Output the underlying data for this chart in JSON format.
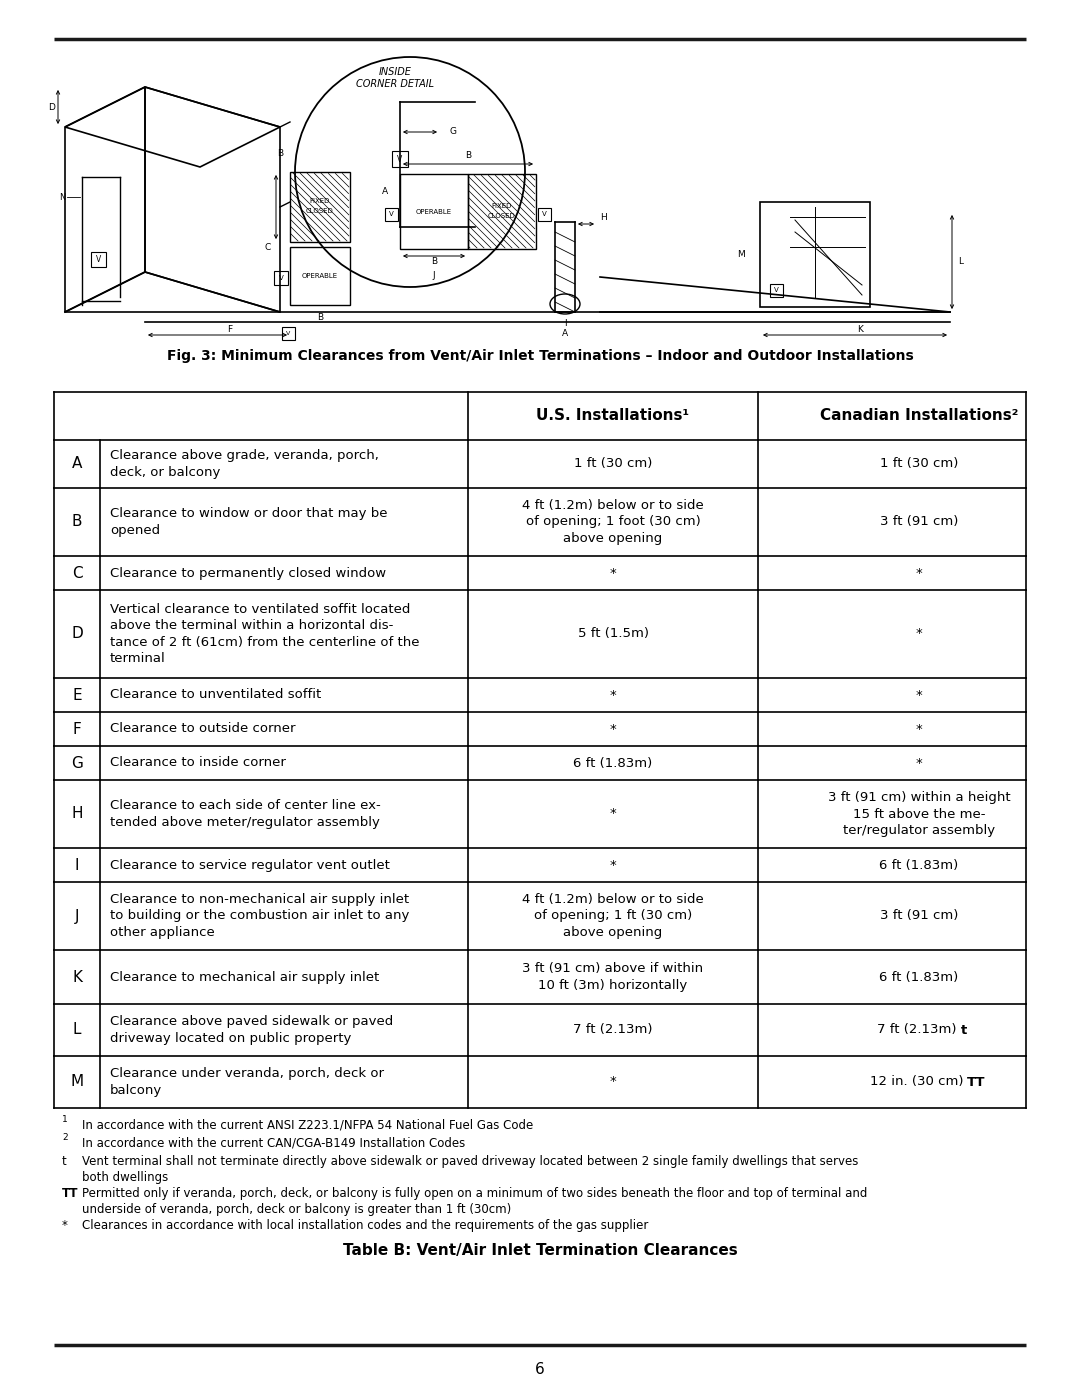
{
  "fig_caption": "Fig. 3: Minimum Clearances from Vent/Air Inlet Terminations – Indoor and Outdoor Installations",
  "table_title": "Table B: Vent/Air Inlet Termination Clearances",
  "rows": [
    {
      "letter": "A",
      "description": "Clearance above grade, veranda, porch,\ndeck, or balcony",
      "us": "1 ft (30 cm)",
      "canada": "1 ft (30 cm)",
      "canada_bold": ""
    },
    {
      "letter": "B",
      "description": "Clearance to window or door that may be\nopened",
      "us": "4 ft (1.2m) below or to side\nof opening; 1 foot (30 cm)\nabove opening",
      "canada": "3 ft (91 cm)",
      "canada_bold": ""
    },
    {
      "letter": "C",
      "description": "Clearance to permanently closed window",
      "us": "*",
      "canada": "*",
      "canada_bold": ""
    },
    {
      "letter": "D",
      "description": "Vertical clearance to ventilated soffit located\nabove the terminal within a horizontal dis-\ntance of 2 ft (61cm) from the centerline of the\nterminal",
      "us": "5 ft (1.5m)",
      "canada": "*",
      "canada_bold": ""
    },
    {
      "letter": "E",
      "description": "Clearance to unventilated soffit",
      "us": "*",
      "canada": "*",
      "canada_bold": ""
    },
    {
      "letter": "F",
      "description": "Clearance to outside corner",
      "us": "*",
      "canada": "*",
      "canada_bold": ""
    },
    {
      "letter": "G",
      "description": "Clearance to inside corner",
      "us": "6 ft (1.83m)",
      "canada": "*",
      "canada_bold": ""
    },
    {
      "letter": "H",
      "description": "Clearance to each side of center line ex-\ntended above meter/regulator assembly",
      "us": "*",
      "canada": "3 ft (91 cm) within a height\n15 ft above the me-\nter/regulator assembly",
      "canada_bold": ""
    },
    {
      "letter": "I",
      "description": "Clearance to service regulator vent outlet",
      "us": "*",
      "canada": "6 ft (1.83m)",
      "canada_bold": ""
    },
    {
      "letter": "J",
      "description": "Clearance to non-mechanical air supply inlet\nto building or the combustion air inlet to any\nother appliance",
      "us": "4 ft (1.2m) below or to side\nof opening; 1 ft (30 cm)\nabove opening",
      "canada": "3 ft (91 cm)",
      "canada_bold": ""
    },
    {
      "letter": "K",
      "description": "Clearance to mechanical air supply inlet",
      "us": "3 ft (91 cm) above if within\n10 ft (3m) horizontally",
      "canada": "6 ft (1.83m)",
      "canada_bold": ""
    },
    {
      "letter": "L",
      "description": "Clearance above paved sidewalk or paved\ndriveway located on public property",
      "us": "7 ft (2.13m)",
      "canada": "7 ft (2.13m) ",
      "canada_bold": "t"
    },
    {
      "letter": "M",
      "description": "Clearance under veranda, porch, deck or\nbalcony",
      "us": "*",
      "canada": "12 in. (30 cm) ",
      "canada_bold": "TT"
    }
  ],
  "footnotes": [
    {
      "marker": "1",
      "superscript": true,
      "text": "In accordance with the current ANSI Z223.1/NFPA 54 National Fuel Gas Code"
    },
    {
      "marker": "2",
      "superscript": true,
      "text": "In accordance with the current CAN/CGA-B149 Installation Codes"
    },
    {
      "marker": "t",
      "superscript": false,
      "text": "Vent terminal shall not terminate directly above sidewalk or paved driveway located between 2 single family dwellings that serves both dwellings"
    },
    {
      "marker": "TT",
      "superscript": false,
      "text": "Permitted only if veranda, porch, deck, or balcony is fully open on a minimum of two sides beneath the floor and top of terminal and underside of veranda, porch, deck or balcony is greater than 1 ft (30cm)"
    },
    {
      "marker": "*",
      "superscript": false,
      "text": "Clearances in accordance with local installation codes and the requirements of the gas supplier"
    }
  ],
  "page_number": "6",
  "background_color": "#ffffff",
  "text_color": "#000000"
}
